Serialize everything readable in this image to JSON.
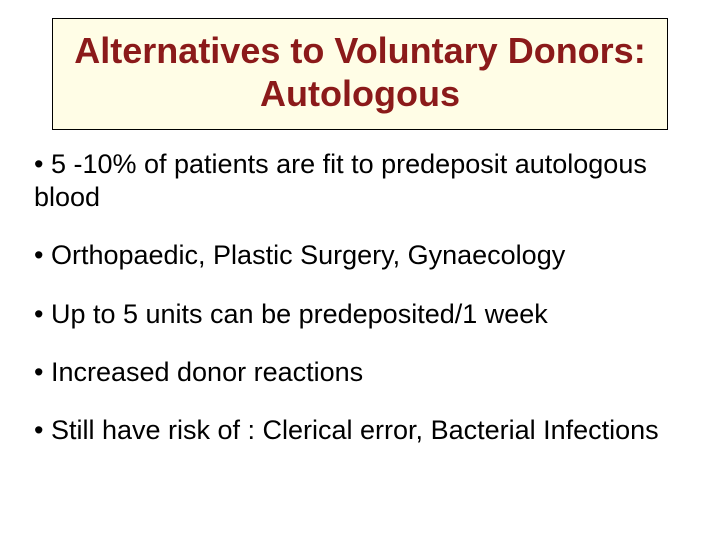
{
  "slide": {
    "background_color": "#ffffff",
    "title": {
      "text": "Alternatives to Voluntary Donors: Autologous",
      "box_bg_color": "#fffde6",
      "box_border_color": "#000000",
      "text_color": "#8b1a1a",
      "font_size": 36,
      "font_weight": "bold"
    },
    "bullets": {
      "items": [
        "• 5 -10% of patients are fit to predeposit autologous blood",
        "• Orthopaedic, Plastic Surgery, Gynaecology",
        "• Up to 5 units can be predeposited/1 week",
        "• Increased donor reactions",
        "• Still have risk of : Clerical error, Bacterial Infections"
      ],
      "text_color": "#000000",
      "font_size": 27,
      "line_spacing": 26
    }
  }
}
